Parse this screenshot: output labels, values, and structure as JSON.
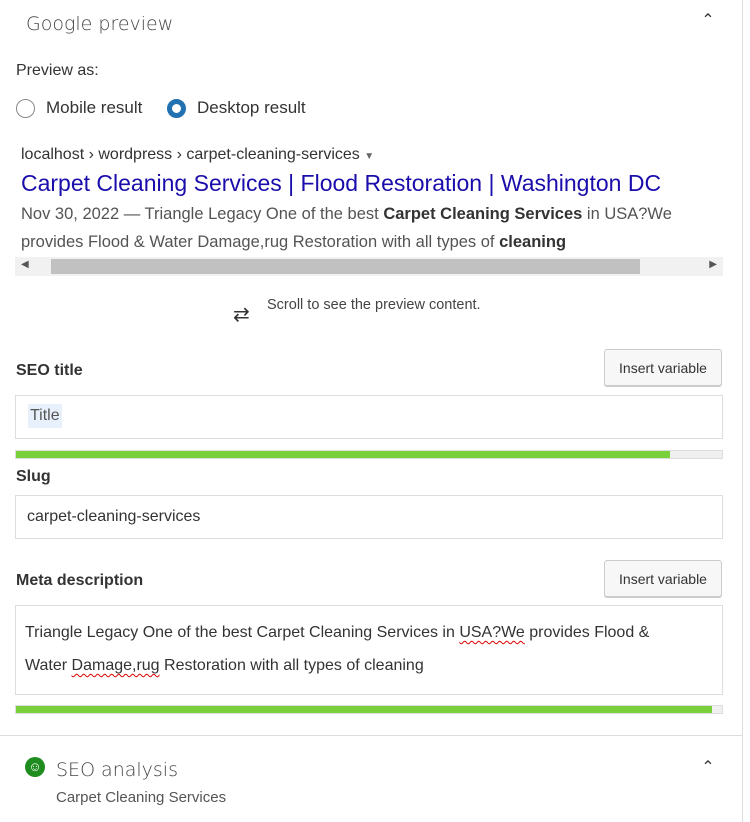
{
  "header": {
    "title": "Google preview",
    "collapse_icon": "chevron-up-icon"
  },
  "preview_as": {
    "label": "Preview as:",
    "options": [
      {
        "label": "Mobile result",
        "selected": false
      },
      {
        "label": "Desktop result",
        "selected": true
      }
    ]
  },
  "serp": {
    "breadcrumb": "localhost › wordpress › carpet-cleaning-services",
    "title": "Carpet Cleaning Services | Flood Restoration | Washington DC",
    "date": "Nov 30, 2022",
    "desc_1": " — Triangle Legacy One of the best ",
    "desc_bold_1": "Carpet Cleaning Services",
    "desc_2": " in USA?We provides Flood & Water Damage,rug Restoration with all types of ",
    "desc_bold_2": "cleaning",
    "title_color": "#1a0dab"
  },
  "scroll_hint": "Scroll to see the preview content.",
  "seo_title": {
    "label": "SEO title",
    "insert_label": "Insert variable",
    "value": "Title",
    "progress_percent": 92.6
  },
  "slug": {
    "label": "Slug",
    "value": "carpet-cleaning-services"
  },
  "meta": {
    "label": "Meta description",
    "insert_label": "Insert variable",
    "text_1": "Triangle Legacy One of the best Carpet Cleaning Services in ",
    "misspelled_1": "USA?We",
    "text_2": " provides Flood &",
    "text_3": "Water ",
    "misspelled_2": "Damage,rug",
    "text_4": " Restoration with all types of cleaning",
    "progress_percent": 98.6
  },
  "analysis": {
    "title": "SEO analysis",
    "keyphrase": "Carpet Cleaning Services",
    "status_color": "#1e8c1e"
  },
  "colors": {
    "progress": "#7ad03a",
    "accent": "#2271b1"
  }
}
